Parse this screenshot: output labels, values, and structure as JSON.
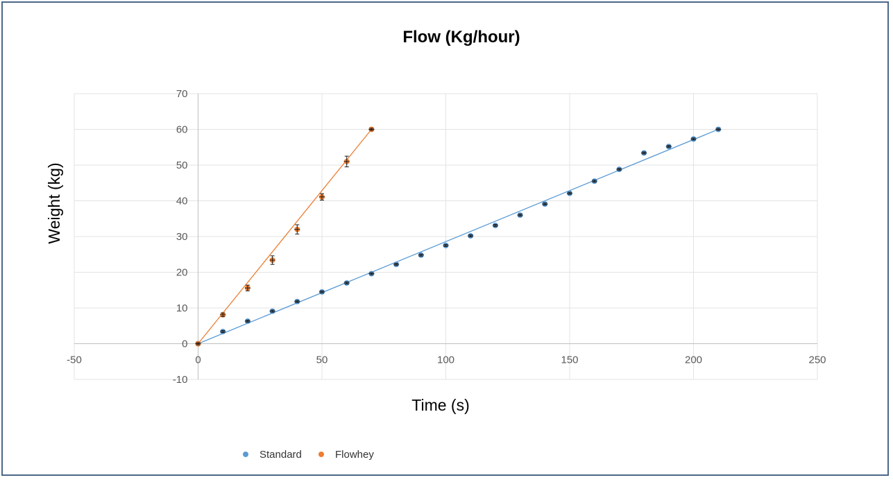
{
  "chart_data": {
    "type": "scatter",
    "title": "Flow (Kg/hour)",
    "xlabel": "Time (s)",
    "ylabel": "Weight (kg)",
    "xlim": [
      -50,
      250
    ],
    "ylim": [
      -10,
      70
    ],
    "x_ticks": [
      -50,
      0,
      50,
      100,
      150,
      200,
      250
    ],
    "y_ticks": [
      -10,
      0,
      10,
      20,
      30,
      40,
      50,
      60,
      70
    ],
    "grid": true,
    "legend": "bottom-left",
    "series": [
      {
        "name": "Standard",
        "color": "#5b9bd5",
        "points": [
          {
            "x": 0,
            "y": 0,
            "err": 0.3
          },
          {
            "x": 10,
            "y": 3.4,
            "err": 0.3
          },
          {
            "x": 20,
            "y": 6.3,
            "err": 0.3
          },
          {
            "x": 30,
            "y": 9.1,
            "err": 0.3
          },
          {
            "x": 40,
            "y": 11.8,
            "err": 0.3
          },
          {
            "x": 50,
            "y": 14.5,
            "err": 0.3
          },
          {
            "x": 60,
            "y": 17.0,
            "err": 0.3
          },
          {
            "x": 70,
            "y": 19.6,
            "err": 0.3
          },
          {
            "x": 80,
            "y": 22.2,
            "err": 0.3
          },
          {
            "x": 90,
            "y": 24.8,
            "err": 0.3
          },
          {
            "x": 100,
            "y": 27.5,
            "err": 0.3
          },
          {
            "x": 110,
            "y": 30.2,
            "err": 0.3
          },
          {
            "x": 120,
            "y": 33.1,
            "err": 0.3
          },
          {
            "x": 130,
            "y": 36.0,
            "err": 0.3
          },
          {
            "x": 140,
            "y": 39.1,
            "err": 0.3
          },
          {
            "x": 150,
            "y": 42.1,
            "err": 0.3
          },
          {
            "x": 160,
            "y": 45.5,
            "err": 0.3
          },
          {
            "x": 170,
            "y": 48.8,
            "err": 0.3
          },
          {
            "x": 180,
            "y": 53.4,
            "err": 0.3
          },
          {
            "x": 190,
            "y": 55.2,
            "err": 0.3
          },
          {
            "x": 200,
            "y": 57.3,
            "err": 0.3
          },
          {
            "x": 210,
            "y": 60.0,
            "err": 0.3
          }
        ],
        "trendline": {
          "from": [
            0,
            0
          ],
          "to": [
            210,
            60
          ]
        }
      },
      {
        "name": "Flowhey",
        "color": "#ed7d31",
        "points": [
          {
            "x": 0,
            "y": 0,
            "err": 0.3
          },
          {
            "x": 10,
            "y": 8.1,
            "err": 0.5
          },
          {
            "x": 20,
            "y": 15.6,
            "err": 0.8
          },
          {
            "x": 30,
            "y": 23.4,
            "err": 1.2
          },
          {
            "x": 40,
            "y": 32.0,
            "err": 1.3
          },
          {
            "x": 50,
            "y": 41.1,
            "err": 0.9
          },
          {
            "x": 60,
            "y": 51.0,
            "err": 1.5
          },
          {
            "x": 70,
            "y": 60.0,
            "err": 0.3
          }
        ],
        "trendline": {
          "from": [
            0,
            0
          ],
          "to": [
            70,
            60
          ]
        }
      }
    ]
  }
}
